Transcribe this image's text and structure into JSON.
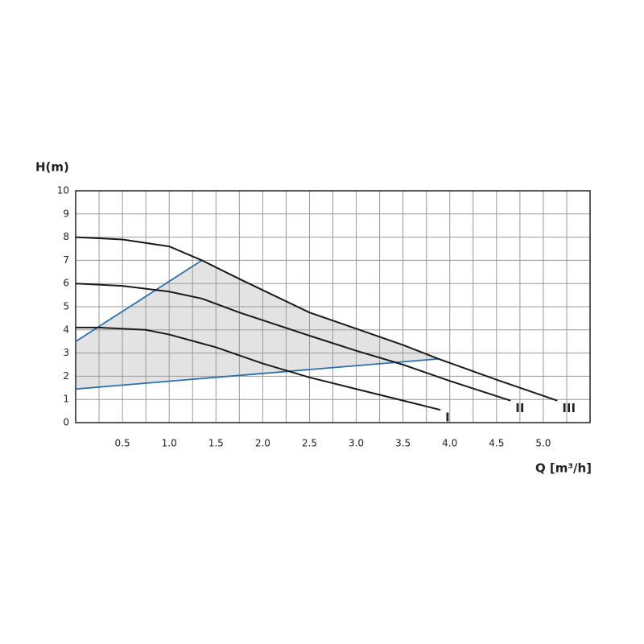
{
  "chart_data": {
    "type": "line",
    "y_label": "H(m)",
    "x_label": "Q [m³/h]",
    "xlim": [
      0,
      5.5
    ],
    "ylim": [
      0,
      10
    ],
    "xticks": [
      0.5,
      {
        "value": 1,
        "label": "1.0"
      },
      1.5,
      {
        "value": 2,
        "label": "2.0"
      },
      2.5,
      {
        "value": 3,
        "label": "3.0"
      },
      3.5,
      {
        "value": 4,
        "label": "4.0"
      },
      4.5,
      {
        "value": 5,
        "label": "5.0"
      }
    ],
    "x_minor_gridlines": [
      0.25,
      0.75,
      1.25,
      1.75,
      2.25,
      2.75,
      3.25,
      3.75,
      4.25,
      4.75,
      5.25
    ],
    "yticks": [
      0,
      1,
      2,
      3,
      4,
      5,
      6,
      7,
      8,
      9,
      10
    ],
    "grid": true,
    "area_color": "#e3e3e3",
    "series": [
      {
        "name": "I",
        "color": "#1a1a1a",
        "x": [
          0,
          0.25,
          0.75,
          1.0,
          1.5,
          2.0,
          2.5,
          3.0,
          3.5,
          3.9
        ],
        "values": [
          4.1,
          4.1,
          4.0,
          3.8,
          3.25,
          2.55,
          1.95,
          1.45,
          0.95,
          0.55
        ]
      },
      {
        "name": "II",
        "color": "#1a1a1a",
        "x": [
          0,
          0.5,
          1.0,
          1.35,
          1.75,
          2.5,
          3.0,
          3.5,
          4.0,
          4.65
        ],
        "values": [
          6,
          5.9,
          5.65,
          5.35,
          4.75,
          3.75,
          3.1,
          2.5,
          1.8,
          0.95
        ]
      },
      {
        "name": "III",
        "color": "#1a1a1a",
        "x": [
          0,
          0.5,
          1.0,
          1.35,
          1.75,
          2.5,
          3.0,
          3.5,
          3.88,
          4.5,
          5.15
        ],
        "values": [
          8,
          7.9,
          7.6,
          7.0,
          6.2,
          4.75,
          4.05,
          3.35,
          2.75,
          1.85,
          0.95
        ]
      }
    ],
    "limit_lines": [
      {
        "color": "#2e6fa8",
        "x": [
          0,
          1.35
        ],
        "values": [
          3.5,
          7.0
        ]
      },
      {
        "color": "#2e6fa8",
        "x": [
          0,
          3.88
        ],
        "values": [
          1.45,
          2.75
        ]
      }
    ]
  }
}
